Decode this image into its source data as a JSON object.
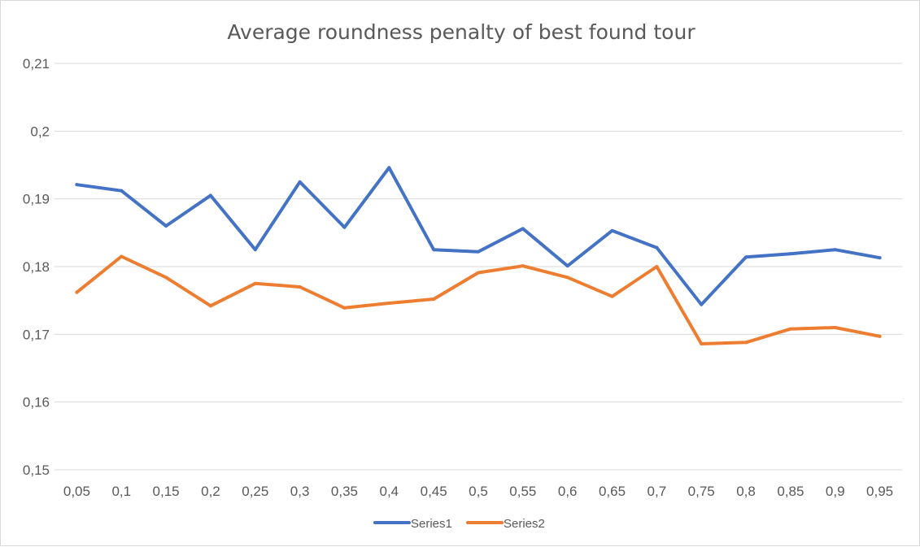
{
  "chart_data": {
    "type": "line",
    "title": "Average roundness penalty of best found tour",
    "xlabel": "",
    "ylabel": "",
    "categories": [
      "0,05",
      "0,1",
      "0,15",
      "0,2",
      "0,25",
      "0,3",
      "0,35",
      "0,4",
      "0,45",
      "0,5",
      "0,55",
      "0,6",
      "0,65",
      "0,7",
      "0,75",
      "0,8",
      "0,85",
      "0,9",
      "0,95"
    ],
    "ylim": [
      0.15,
      0.21
    ],
    "y_ticks": [
      0.15,
      0.16,
      0.17,
      0.18,
      0.19,
      0.2,
      0.21
    ],
    "y_tick_labels": [
      "0,15",
      "0,16",
      "0,17",
      "0,18",
      "0,19",
      "0,2",
      "0,21"
    ],
    "grid": true,
    "legend_position": "bottom",
    "series": [
      {
        "name": "Series1",
        "color": "#4472c4",
        "values": [
          0.1921,
          0.1912,
          0.186,
          0.1905,
          0.1825,
          0.1925,
          0.1858,
          0.1946,
          0.1825,
          0.1822,
          0.1856,
          0.1801,
          0.1853,
          0.1828,
          0.1744,
          0.1814,
          0.1819,
          0.1825,
          0.1813
        ]
      },
      {
        "name": "Series2",
        "color": "#ed7d31",
        "values": [
          0.1762,
          0.1815,
          0.1784,
          0.1742,
          0.1775,
          0.177,
          0.1739,
          0.1746,
          0.1752,
          0.1791,
          0.1801,
          0.1784,
          0.1756,
          0.18,
          0.1686,
          0.1688,
          0.1708,
          0.171,
          0.1697
        ]
      }
    ]
  }
}
